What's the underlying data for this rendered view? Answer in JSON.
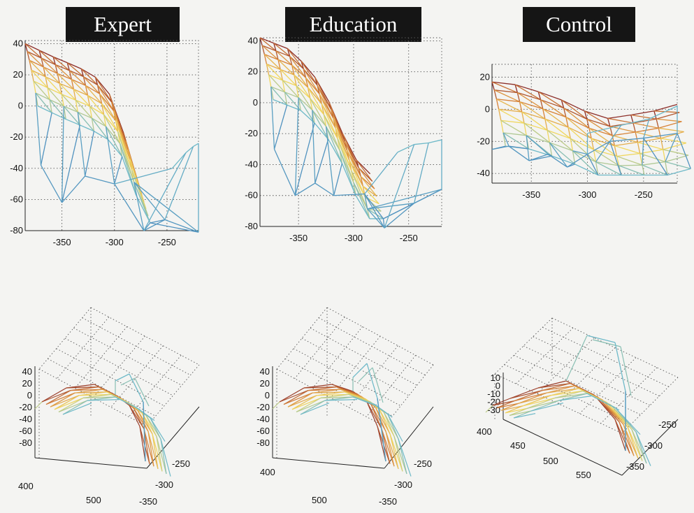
{
  "titles": [
    "Expert",
    "Education",
    "Control"
  ],
  "chart_data": [
    {
      "type": "mesh-2d",
      "title": "Expert",
      "xticks": [
        -350,
        -300,
        -250
      ],
      "yticks": [
        40,
        20,
        0,
        -20,
        -40,
        -60,
        -80
      ],
      "xlim": [
        -385,
        -220
      ],
      "ylim": [
        -80,
        42
      ],
      "top_profile": [
        [
          -385,
          40
        ],
        [
          -360,
          32
        ],
        [
          -335,
          25
        ],
        [
          -320,
          20
        ],
        [
          -305,
          8
        ],
        [
          -295,
          -10
        ],
        [
          -285,
          -30
        ],
        [
          -278,
          -48
        ]
      ],
      "bottom_tips": [
        [
          -370,
          -38
        ],
        [
          -350,
          -62
        ],
        [
          -328,
          -45
        ],
        [
          -300,
          -50
        ],
        [
          -272,
          -80
        ],
        [
          -252,
          -73
        ],
        [
          -220,
          -81
        ]
      ],
      "right_bump": [
        [
          -245,
          -40
        ],
        [
          -232,
          -30
        ],
        [
          -225,
          -26
        ],
        [
          -220,
          -24
        ]
      ]
    },
    {
      "type": "mesh-2d",
      "title": "Education",
      "xticks": [
        -350,
        -300,
        -250
      ],
      "yticks": [
        40,
        20,
        0,
        -20,
        -40,
        -60,
        -80
      ],
      "xlim": [
        -385,
        -220
      ],
      "ylim": [
        -80,
        42
      ],
      "top_profile": [
        [
          -385,
          42
        ],
        [
          -360,
          35
        ],
        [
          -340,
          22
        ],
        [
          -325,
          5
        ],
        [
          -315,
          -12
        ],
        [
          -305,
          -28
        ],
        [
          -295,
          -40
        ],
        [
          -285,
          -46
        ]
      ],
      "bottom_tips": [
        [
          -372,
          -30
        ],
        [
          -353,
          -60
        ],
        [
          -335,
          -52
        ],
        [
          -318,
          -60
        ],
        [
          -290,
          -59
        ],
        [
          -272,
          -81
        ],
        [
          -245,
          -65
        ],
        [
          -220,
          -56
        ]
      ],
      "right_bump": [
        [
          -260,
          -32
        ],
        [
          -245,
          -27
        ],
        [
          -232,
          -26
        ],
        [
          -220,
          -24
        ]
      ]
    },
    {
      "type": "mesh-2d",
      "title": "Control",
      "xticks": [
        -350,
        -300,
        -250
      ],
      "yticks": [
        20,
        0,
        -20,
        -40
      ],
      "xlim": [
        -385,
        -220
      ],
      "ylim": [
        -46,
        28
      ],
      "top_profile": [
        [
          -385,
          17
        ],
        [
          -360,
          15
        ],
        [
          -340,
          10
        ],
        [
          -320,
          5
        ],
        [
          -300,
          -2
        ],
        [
          -285,
          -6
        ],
        [
          -265,
          -4
        ],
        [
          -240,
          -1
        ],
        [
          -220,
          3
        ]
      ],
      "bottom_tips": [
        [
          -385,
          -25
        ],
        [
          -370,
          -23
        ],
        [
          -352,
          -32
        ],
        [
          -335,
          -28
        ],
        [
          -318,
          -36
        ],
        [
          -300,
          -28
        ],
        [
          -280,
          -20
        ],
        [
          -250,
          -18
        ],
        [
          -220,
          -15
        ]
      ],
      "right_bump": [
        [
          -300,
          -15
        ],
        [
          -270,
          -10
        ],
        [
          -245,
          -6
        ],
        [
          -220,
          2
        ]
      ]
    },
    {
      "type": "mesh-3d",
      "z_ticks": [
        40,
        20,
        0,
        -20,
        -40,
        -60,
        -80
      ],
      "x_ticks": [
        400,
        500
      ],
      "y_ticks": [
        -250,
        -300,
        -350
      ]
    },
    {
      "type": "mesh-3d",
      "z_ticks": [
        40,
        20,
        0,
        -20,
        -40,
        -60,
        -80
      ],
      "x_ticks": [
        400,
        500
      ],
      "y_ticks": [
        -250,
        -300,
        -350
      ]
    },
    {
      "type": "mesh-3d",
      "z_ticks": [
        10,
        0,
        -10,
        -20,
        -30
      ],
      "x_ticks": [
        400,
        450,
        500,
        550
      ],
      "y_ticks": [
        -250,
        -300,
        -350
      ]
    }
  ]
}
